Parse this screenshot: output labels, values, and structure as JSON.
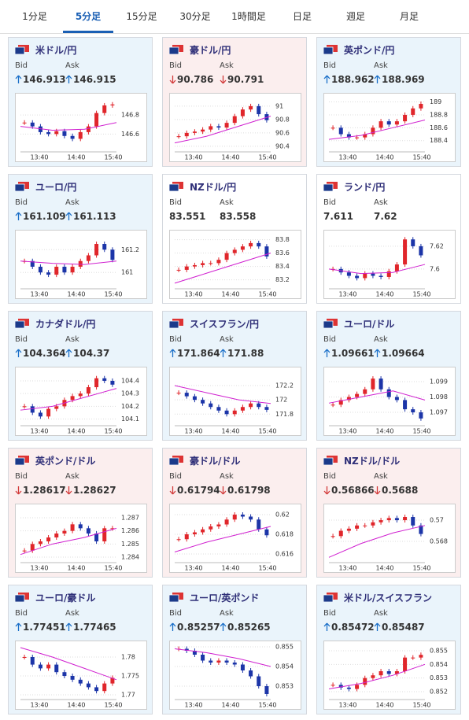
{
  "tabs": {
    "items": [
      "1分足",
      "5分足",
      "15分足",
      "30分足",
      "1時間足",
      "日足",
      "週足",
      "月足"
    ],
    "active": 1
  },
  "labels": {
    "bid": "Bid",
    "ask": "Ask"
  },
  "times": [
    "13:40",
    "14:40",
    "15:40"
  ],
  "cards": [
    {
      "title": "米ドル/円",
      "bid": 146.913,
      "ask": 146.915,
      "dir": "up",
      "chart": {
        "ylim": [
          146.43,
          146.99
        ],
        "yticks": [
          146.6,
          146.8
        ],
        "close": [
          146.72,
          146.68,
          146.62,
          146.6,
          146.63,
          146.58,
          146.55,
          146.62,
          146.68,
          146.82,
          146.9,
          146.91
        ],
        "ma": [
          146.68,
          146.64,
          146.65,
          146.72
        ]
      }
    },
    {
      "title": "豪ドル/円",
      "bid": 90.786,
      "ask": 90.791,
      "dir": "down",
      "chart": {
        "ylim": [
          90.34,
          91.14
        ],
        "yticks": [
          90.4,
          90.6,
          90.8,
          91
        ],
        "close": [
          90.55,
          90.6,
          90.62,
          90.65,
          90.7,
          90.68,
          90.75,
          90.85,
          90.95,
          91.0,
          90.88,
          90.79
        ],
        "ma": [
          90.45,
          90.55,
          90.7,
          90.85
        ]
      }
    },
    {
      "title": "英ポンド/円",
      "bid": 188.962,
      "ask": 188.969,
      "dir": "up",
      "chart": {
        "ylim": [
          188.25,
          189.08
        ],
        "yticks": [
          188.4,
          188.6,
          188.8,
          189
        ],
        "close": [
          188.6,
          188.5,
          188.45,
          188.45,
          188.5,
          188.6,
          188.7,
          188.65,
          188.7,
          188.8,
          188.9,
          188.97
        ],
        "ma": [
          188.42,
          188.48,
          188.6,
          188.72
        ]
      }
    },
    {
      "title": "ユーロ/円",
      "bid": 161.109,
      "ask": 161.113,
      "dir": "up",
      "chart": {
        "ylim": [
          160.87,
          161.34
        ],
        "yticks": [
          161,
          161.2
        ],
        "close": [
          161.1,
          161.05,
          161.0,
          160.98,
          161.05,
          161.0,
          161.05,
          161.1,
          161.15,
          161.25,
          161.2,
          161.11
        ],
        "ma": [
          161.1,
          161.08,
          161.07,
          161.1
        ]
      }
    },
    {
      "title": "NZドル/円",
      "bid": 83.551,
      "ask": 83.558,
      "dir": "none",
      "chart": {
        "ylim": [
          83.09,
          83.89
        ],
        "yticks": [
          83.2,
          83.4,
          83.6,
          83.8
        ],
        "close": [
          83.35,
          83.4,
          83.42,
          83.45,
          83.45,
          83.5,
          83.6,
          83.65,
          83.7,
          83.75,
          83.7,
          83.55
        ],
        "ma": [
          83.15,
          83.3,
          83.45,
          83.6
        ]
      }
    },
    {
      "title": "ランド/円",
      "bid": 7.611,
      "ask": 7.62,
      "dir": "none",
      "chart": {
        "ylim": [
          7.584,
          7.631
        ],
        "yticks": [
          7.6,
          7.62
        ],
        "close": [
          7.6,
          7.597,
          7.594,
          7.592,
          7.596,
          7.594,
          7.593,
          7.598,
          7.604,
          7.626,
          7.62,
          7.612
        ],
        "ma": [
          7.6,
          7.596,
          7.597,
          7.604
        ]
      }
    },
    {
      "title": "カナダドル/円",
      "bid": 104.364,
      "ask": 104.37,
      "dir": "up",
      "chart": {
        "ylim": [
          104.06,
          104.48
        ],
        "yticks": [
          104.1,
          104.2,
          104.3,
          104.4
        ],
        "close": [
          104.2,
          104.15,
          104.12,
          104.18,
          104.2,
          104.25,
          104.28,
          104.3,
          104.35,
          104.42,
          104.4,
          104.37
        ],
        "ma": [
          104.17,
          104.2,
          104.27,
          104.34
        ]
      }
    },
    {
      "title": "スイスフラン/円",
      "bid": 171.864,
      "ask": 171.88,
      "dir": "up",
      "chart": {
        "ylim": [
          171.66,
          172.41
        ],
        "yticks": [
          171.8,
          172,
          172.2
        ],
        "close": [
          172.1,
          172.05,
          172,
          171.95,
          171.9,
          171.85,
          171.8,
          171.85,
          171.9,
          171.95,
          171.9,
          171.86
        ],
        "ma": [
          172.2,
          172.1,
          172.0,
          171.95
        ]
      }
    },
    {
      "title": "ユーロ/ドル",
      "bid": 1.09661,
      "ask": 1.09664,
      "dir": "up",
      "chart": {
        "ylim": [
          1.09623,
          1.09972
        ],
        "yticks": [
          1.097,
          1.098,
          1.099
        ],
        "close": [
          1.0975,
          1.0978,
          1.098,
          1.0982,
          1.0985,
          1.0992,
          1.0985,
          1.098,
          1.0978,
          1.0972,
          1.097,
          1.0966
        ],
        "ma": [
          1.0976,
          1.098,
          1.0984,
          1.0978
        ]
      }
    },
    {
      "title": "英ポンド/ドル",
      "bid": 1.28617,
      "ask": 1.28627,
      "dir": "down",
      "chart": {
        "ylim": [
          1.2837,
          1.28778
        ],
        "yticks": [
          1.284,
          1.285,
          1.286,
          1.287
        ],
        "close": [
          1.2845,
          1.285,
          1.2852,
          1.2855,
          1.2858,
          1.286,
          1.2865,
          1.2862,
          1.2858,
          1.2852,
          1.2862,
          1.2862
        ],
        "ma": [
          1.2842,
          1.285,
          1.2855,
          1.2862
        ]
      }
    },
    {
      "title": "豪ドル/ドル",
      "bid": 0.61794,
      "ask": 0.61798,
      "dir": "down",
      "chart": {
        "ylim": [
          0.61528,
          0.62072
        ],
        "yticks": [
          0.616,
          0.618,
          0.62
        ],
        "close": [
          0.6175,
          0.618,
          0.6182,
          0.6185,
          0.6188,
          0.619,
          0.6195,
          0.62,
          0.6198,
          0.6195,
          0.6185,
          0.6179
        ],
        "ma": [
          0.6162,
          0.6172,
          0.618,
          0.6188
        ]
      }
    },
    {
      "title": "NZドル/ドル",
      "bid": 0.56866,
      "ask": 0.5688,
      "dir": "down",
      "chart": {
        "ylim": [
          0.56615,
          0.57119
        ],
        "yticks": [
          0.568,
          0.57
        ],
        "close": [
          0.5685,
          0.569,
          0.5692,
          0.5695,
          0.5695,
          0.5698,
          0.57,
          0.5702,
          0.57,
          0.5703,
          0.5695,
          0.5687
        ],
        "ma": [
          0.5665,
          0.5678,
          0.5688,
          0.5695
        ]
      }
    },
    {
      "title": "ユーロ/豪ドル",
      "bid": 1.77451,
      "ask": 1.77465,
      "dir": "up",
      "chart": {
        "ylim": [
          1.76917,
          1.78333
        ],
        "yticks": [
          1.77,
          1.775,
          1.78
        ],
        "close": [
          1.78,
          1.778,
          1.777,
          1.778,
          1.776,
          1.775,
          1.774,
          1.773,
          1.772,
          1.771,
          1.773,
          1.7745
        ],
        "ma": [
          1.7825,
          1.78,
          1.777,
          1.774
        ]
      }
    },
    {
      "title": "ユーロ/英ポンド",
      "bid": 0.85257,
      "ask": 0.85265,
      "dir": "up",
      "chart": {
        "ylim": [
          0.8524,
          0.85512
        ],
        "yticks": [
          0.853,
          0.854,
          0.855
        ],
        "close": [
          0.8549,
          0.8548,
          0.8546,
          0.8543,
          0.8542,
          0.8543,
          0.8542,
          0.8541,
          0.8538,
          0.8535,
          0.853,
          0.8526
        ],
        "ma": [
          0.8549,
          0.8547,
          0.8544,
          0.854
        ]
      }
    },
    {
      "title": "米ドル/スイスフラン",
      "bid": 0.85472,
      "ask": 0.85487,
      "dir": "up",
      "chart": {
        "ylim": [
          0.85154,
          0.85546
        ],
        "yticks": [
          0.852,
          0.853,
          0.854,
          0.855
        ],
        "close": [
          0.8525,
          0.8523,
          0.8522,
          0.8525,
          0.853,
          0.8532,
          0.8535,
          0.8533,
          0.8535,
          0.8545,
          0.8545,
          0.8547
        ],
        "ma": [
          0.8522,
          0.8526,
          0.8532,
          0.854
        ]
      }
    }
  ]
}
